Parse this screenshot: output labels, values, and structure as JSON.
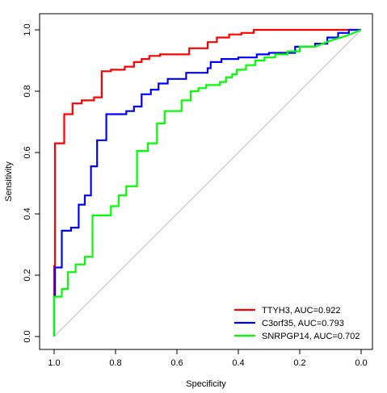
{
  "chart_data": {
    "type": "line",
    "title": "",
    "xlabel": "Specificity",
    "ylabel": "Sensitivity",
    "xlim": [
      1.0,
      0.0
    ],
    "ylim": [
      0.0,
      1.0
    ],
    "x_reversed": true,
    "grid": false,
    "legend_position": "bottom-right",
    "x_ticks": [
      "1.0",
      "0.8",
      "0.6",
      "0.4",
      "0.2",
      "0.0"
    ],
    "y_ticks": [
      "0.0",
      "0.2",
      "0.4",
      "0.6",
      "0.8",
      "1.0"
    ],
    "reference_line": {
      "from": [
        1.0,
        0.0
      ],
      "to": [
        0.0,
        1.0
      ],
      "color": "#bebebe"
    },
    "series": [
      {
        "name": "TTYH3, AUC=0.922",
        "color": "#ff0000",
        "points": [
          [
            1.0,
            0.0
          ],
          [
            1.0,
            0.23
          ],
          [
            0.997,
            0.23
          ],
          [
            0.997,
            0.63
          ],
          [
            0.967,
            0.63
          ],
          [
            0.967,
            0.725
          ],
          [
            0.94,
            0.725
          ],
          [
            0.94,
            0.76
          ],
          [
            0.91,
            0.76
          ],
          [
            0.91,
            0.77
          ],
          [
            0.87,
            0.77
          ],
          [
            0.87,
            0.78
          ],
          [
            0.845,
            0.78
          ],
          [
            0.845,
            0.865
          ],
          [
            0.815,
            0.865
          ],
          [
            0.815,
            0.87
          ],
          [
            0.77,
            0.87
          ],
          [
            0.77,
            0.88
          ],
          [
            0.74,
            0.88
          ],
          [
            0.74,
            0.895
          ],
          [
            0.715,
            0.895
          ],
          [
            0.715,
            0.905
          ],
          [
            0.69,
            0.905
          ],
          [
            0.69,
            0.915
          ],
          [
            0.655,
            0.915
          ],
          [
            0.655,
            0.92
          ],
          [
            0.56,
            0.92
          ],
          [
            0.56,
            0.94
          ],
          [
            0.5,
            0.94
          ],
          [
            0.5,
            0.96
          ],
          [
            0.47,
            0.96
          ],
          [
            0.47,
            0.975
          ],
          [
            0.43,
            0.975
          ],
          [
            0.43,
            0.985
          ],
          [
            0.39,
            0.985
          ],
          [
            0.39,
            0.99
          ],
          [
            0.35,
            0.99
          ],
          [
            0.35,
            1.0
          ],
          [
            0.0,
            1.0
          ]
        ]
      },
      {
        "name": "C3orf35, AUC=0.793",
        "color": "#0000ff",
        "points": [
          [
            1.0,
            0.0
          ],
          [
            1.0,
            0.13
          ],
          [
            0.997,
            0.13
          ],
          [
            0.997,
            0.225
          ],
          [
            0.975,
            0.225
          ],
          [
            0.975,
            0.345
          ],
          [
            0.945,
            0.345
          ],
          [
            0.945,
            0.355
          ],
          [
            0.92,
            0.355
          ],
          [
            0.92,
            0.43
          ],
          [
            0.9,
            0.43
          ],
          [
            0.9,
            0.46
          ],
          [
            0.88,
            0.46
          ],
          [
            0.88,
            0.555
          ],
          [
            0.86,
            0.555
          ],
          [
            0.86,
            0.64
          ],
          [
            0.83,
            0.64
          ],
          [
            0.83,
            0.725
          ],
          [
            0.765,
            0.725
          ],
          [
            0.765,
            0.735
          ],
          [
            0.74,
            0.735
          ],
          [
            0.74,
            0.75
          ],
          [
            0.715,
            0.75
          ],
          [
            0.715,
            0.79
          ],
          [
            0.685,
            0.79
          ],
          [
            0.685,
            0.805
          ],
          [
            0.66,
            0.805
          ],
          [
            0.66,
            0.825
          ],
          [
            0.63,
            0.825
          ],
          [
            0.63,
            0.84
          ],
          [
            0.57,
            0.84
          ],
          [
            0.57,
            0.86
          ],
          [
            0.5,
            0.86
          ],
          [
            0.5,
            0.875
          ],
          [
            0.49,
            0.875
          ],
          [
            0.49,
            0.895
          ],
          [
            0.455,
            0.895
          ],
          [
            0.455,
            0.905
          ],
          [
            0.4,
            0.905
          ],
          [
            0.4,
            0.91
          ],
          [
            0.34,
            0.91
          ],
          [
            0.34,
            0.92
          ],
          [
            0.3,
            0.92
          ],
          [
            0.3,
            0.925
          ],
          [
            0.215,
            0.925
          ],
          [
            0.215,
            0.945
          ],
          [
            0.15,
            0.945
          ],
          [
            0.15,
            0.955
          ],
          [
            0.11,
            0.955
          ],
          [
            0.11,
            0.975
          ],
          [
            0.075,
            0.975
          ],
          [
            0.075,
            0.99
          ],
          [
            0.04,
            0.99
          ],
          [
            0.04,
            1.0
          ],
          [
            0.0,
            1.0
          ]
        ]
      },
      {
        "name": "SNRPGP14, AUC=0.702",
        "color": "#00ff00",
        "points": [
          [
            1.0,
            0.0
          ],
          [
            1.0,
            0.13
          ],
          [
            0.975,
            0.13
          ],
          [
            0.975,
            0.155
          ],
          [
            0.955,
            0.155
          ],
          [
            0.955,
            0.21
          ],
          [
            0.93,
            0.21
          ],
          [
            0.93,
            0.235
          ],
          [
            0.9,
            0.235
          ],
          [
            0.9,
            0.26
          ],
          [
            0.875,
            0.26
          ],
          [
            0.875,
            0.395
          ],
          [
            0.815,
            0.395
          ],
          [
            0.815,
            0.425
          ],
          [
            0.79,
            0.425
          ],
          [
            0.79,
            0.46
          ],
          [
            0.765,
            0.46
          ],
          [
            0.765,
            0.49
          ],
          [
            0.73,
            0.49
          ],
          [
            0.73,
            0.605
          ],
          [
            0.695,
            0.605
          ],
          [
            0.695,
            0.63
          ],
          [
            0.665,
            0.63
          ],
          [
            0.665,
            0.695
          ],
          [
            0.64,
            0.695
          ],
          [
            0.64,
            0.735
          ],
          [
            0.585,
            0.735
          ],
          [
            0.585,
            0.77
          ],
          [
            0.555,
            0.77
          ],
          [
            0.555,
            0.8
          ],
          [
            0.53,
            0.8
          ],
          [
            0.53,
            0.81
          ],
          [
            0.505,
            0.81
          ],
          [
            0.505,
            0.82
          ],
          [
            0.46,
            0.82
          ],
          [
            0.46,
            0.83
          ],
          [
            0.44,
            0.83
          ],
          [
            0.44,
            0.845
          ],
          [
            0.42,
            0.845
          ],
          [
            0.42,
            0.855
          ],
          [
            0.405,
            0.855
          ],
          [
            0.405,
            0.87
          ],
          [
            0.375,
            0.87
          ],
          [
            0.375,
            0.885
          ],
          [
            0.345,
            0.885
          ],
          [
            0.345,
            0.9
          ],
          [
            0.315,
            0.9
          ],
          [
            0.315,
            0.91
          ],
          [
            0.28,
            0.91
          ],
          [
            0.28,
            0.92
          ],
          [
            0.24,
            0.92
          ],
          [
            0.24,
            0.93
          ],
          [
            0.2,
            0.93
          ],
          [
            0.2,
            0.945
          ],
          [
            0.15,
            0.945
          ],
          [
            0.1,
            0.965
          ],
          [
            0.05,
            0.98
          ],
          [
            0.0,
            1.0
          ]
        ]
      }
    ]
  }
}
